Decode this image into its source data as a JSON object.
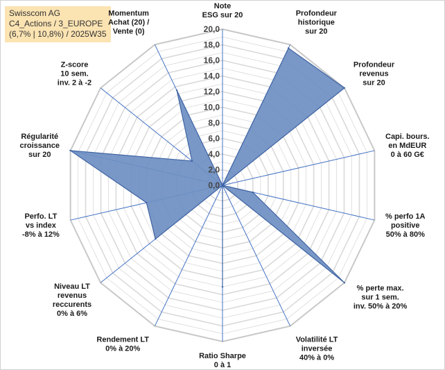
{
  "title": {
    "line1": "Swisscom AG",
    "line2": "C4_Actions / 3_EUROPE",
    "line3": "(6,7% | 10,8%) / 2025W35"
  },
  "chart_data": {
    "type": "radar",
    "rlim": [
      0,
      20
    ],
    "tick_labels": [
      "0,0",
      "2,0",
      "4,0",
      "6,0",
      "8,0",
      "10,0",
      "12,0",
      "14,0",
      "16,0",
      "18,0",
      "20,0"
    ],
    "grid": true,
    "colors": {
      "fill": "#6e8fc2",
      "line": "#3f63a3",
      "spokes": "#4472c4",
      "grid": "#d9d9d9"
    },
    "categories": [
      [
        "Note",
        "ESG sur 20"
      ],
      [
        "Profondeur",
        "historique",
        "sur 20"
      ],
      [
        "Profondeur",
        "revenus",
        "sur 20"
      ],
      [
        "Capi. bours.",
        "en MdEUR",
        "0 à 60 G€"
      ],
      [
        "% perfo 1A",
        "positive",
        "50% à 80%"
      ],
      [
        "% perte max.",
        "sur 1 sem.",
        "inv. 50% à 20%"
      ],
      [
        "Volatilité LT",
        "inversée",
        "40% à 0%"
      ],
      [
        "Ratio Sharpe",
        "0 à 1"
      ],
      [
        "Rendement LT",
        "0% à 20%"
      ],
      [
        "Niveau LT",
        "revenus",
        "reccurents",
        "0% à 6%"
      ],
      [
        "Perfo. LT",
        "vs index",
        "-8% à 12%"
      ],
      [
        "Régularité",
        "croissance",
        "sur 20"
      ],
      [
        "Z-score",
        "10 sem.",
        "inv. 2 à -2"
      ],
      [
        "Momentum",
        "Achat (20) /",
        "Vente (0)"
      ]
    ],
    "values": [
      0,
      19.5,
      20,
      0,
      4,
      20,
      0,
      13,
      0,
      11,
      10,
      20,
      5,
      13.5
    ]
  }
}
